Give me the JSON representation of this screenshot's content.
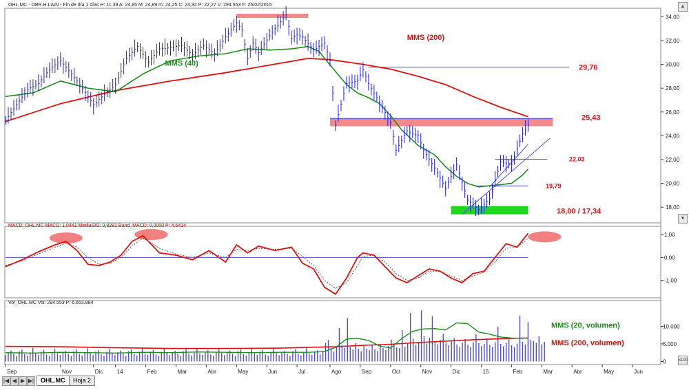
{
  "window": {
    "price_header": "OHL.MC - OBR.H.LAIN - Fin de día 1 días  H: 11:39  A: 24,85  M: 24,89  m: 24,25  C: 24,32  P: 22,27  V: 294.553  F: 25/02/2015",
    "macd_header": "MACD_OHL.MC  MACD: 1,0441  MediaSIG: 0,8281  Band_MACD: 0,0000  P: 4,6414",
    "vol_header": "Vol_OHL.MC  Vol: 294.553  P: 6.653.884",
    "sheet_tabs": [
      "OHL.MC",
      "Hoja 2"
    ],
    "nav_buttons": [
      "|◀",
      "◀",
      "▶",
      "▶|"
    ],
    "panel_buttons": [
      "▲",
      "▼"
    ],
    "volume_scale_badge": "x100"
  },
  "colors": {
    "price": "#1a1aff",
    "mms40": "#1e8c1e",
    "mms200": "#e01010",
    "resistance_band": "#f28a8a",
    "support_band": "#1ed81e",
    "ellipse": "#f06a6a",
    "macd": "#e01010",
    "macd_signal": "#555555",
    "zero_line": "#4a4ad0",
    "volume_bar": "#4b4bdc",
    "label_red": "#e01010",
    "label_green": "#1e8c1e"
  },
  "chart_data": [
    {
      "type": "line",
      "panel": "price",
      "ylim": [
        16.8,
        34.6
      ],
      "yticks": [
        "34,00",
        "32,00",
        "30,00",
        "28,00",
        "26,00",
        "24,00",
        "22,00",
        "20,00",
        "18,00"
      ],
      "yticks_values": [
        34,
        32,
        30,
        28,
        26,
        24,
        22,
        20,
        18
      ],
      "x_tick_labels": [
        "Sep",
        "Nov",
        "Dic",
        "14",
        "Feb",
        "Mar",
        "Abr",
        "May",
        "Jun",
        "Jul",
        "Ago",
        "Sep",
        "Oct",
        "Nov",
        "Dic",
        "15",
        "Feb",
        "Mar",
        "Abr",
        "May",
        "Jun"
      ],
      "x_tick_index": [
        0,
        20,
        32,
        40,
        51,
        62,
        73,
        84,
        95,
        106,
        118,
        129,
        140,
        151,
        162,
        173,
        184,
        195,
        206,
        217,
        228
      ],
      "x_range_days": [
        0,
        238
      ],
      "series": [
        {
          "key": "price",
          "x": [
            0,
            4,
            8,
            12,
            16,
            20,
            24,
            28,
            32,
            36,
            40,
            44,
            48,
            52,
            56,
            60,
            64,
            68,
            72,
            76,
            80,
            84,
            86,
            88,
            90,
            92,
            96,
            100,
            102,
            104,
            106,
            108,
            112,
            116,
            118,
            120,
            124,
            128,
            130,
            132,
            136,
            140,
            142,
            146,
            150,
            152,
            156,
            160,
            164,
            168,
            172,
            176,
            180,
            184,
            186,
            188,
            190
          ],
          "values": [
            25.3,
            26.6,
            27.9,
            28.4,
            29.6,
            30.3,
            29.2,
            28.0,
            26.6,
            27.5,
            28.3,
            30.5,
            31.5,
            30.2,
            31.3,
            31.4,
            31.6,
            30.8,
            31.6,
            30.9,
            32.3,
            33.5,
            32.9,
            30.5,
            31.8,
            31.0,
            32.4,
            33.6,
            34.2,
            32.2,
            32.5,
            32.3,
            31.2,
            31.8,
            30.3,
            24.9,
            28.4,
            28.6,
            29.6,
            28.4,
            26.8,
            25.1,
            22.8,
            24.4,
            24.0,
            22.8,
            21.3,
            19.6,
            21.6,
            18.6,
            17.8,
            18.7,
            21.8,
            21.6,
            22.9,
            24.2,
            24.9
          ]
        },
        {
          "key": "mms40",
          "name": "MMS (40)",
          "x": [
            0,
            10,
            20,
            30,
            40,
            50,
            60,
            70,
            80,
            88,
            96,
            104,
            110,
            114,
            116,
            120,
            124,
            128,
            132,
            136,
            140,
            144,
            150,
            156,
            160,
            164,
            168,
            172,
            176,
            180,
            184,
            188,
            190
          ],
          "values": [
            27.3,
            27.6,
            28.6,
            28.0,
            27.7,
            29.2,
            30.3,
            30.7,
            30.9,
            31.3,
            31.2,
            31.3,
            31.5,
            31.1,
            30.5,
            29.4,
            28.3,
            27.6,
            27.2,
            26.7,
            25.7,
            24.5,
            23.2,
            22.4,
            21.4,
            20.6,
            20.0,
            19.7,
            19.8,
            19.9,
            20.0,
            20.7,
            21.2
          ]
        },
        {
          "key": "mms200",
          "name": "MMS (200)",
          "x": [
            0,
            20,
            40,
            60,
            80,
            100,
            110,
            118,
            130,
            140,
            150,
            160,
            170,
            180,
            190
          ],
          "values": [
            25.2,
            26.7,
            27.8,
            28.6,
            29.3,
            30.1,
            30.5,
            30.4,
            30.0,
            29.6,
            29.0,
            28.3,
            27.3,
            26.4,
            25.6
          ]
        }
      ],
      "annotations": {
        "hline_2976": {
          "y": 29.76,
          "x": [
            132,
            205
          ],
          "label": "29,76"
        },
        "band_2543": {
          "y": [
            24.8,
            25.5
          ],
          "x": [
            118,
            199
          ],
          "label": "25,43"
        },
        "top_band": {
          "y": [
            33.9,
            34.25
          ],
          "x": [
            84,
            110
          ]
        },
        "hline_2203": {
          "y": 22.03,
          "x": [
            178,
            197
          ],
          "label": "22,03"
        },
        "hline_1979": {
          "y": 19.79,
          "x": [
            171,
            190
          ],
          "label": "19,79"
        },
        "support_band": {
          "y": [
            17.4,
            18.1
          ],
          "x": [
            162,
            190
          ],
          "label": "18,00 / 17,34"
        },
        "trendline": {
          "x": [
            166,
            198
          ],
          "y": [
            17.4,
            23.8
          ]
        },
        "trendline_short": {
          "x": [
            176,
            190
          ],
          "y": [
            19.7,
            23.3
          ]
        },
        "label_mms200": "MMS (200)",
        "label_mms40": "MMS (40)"
      }
    },
    {
      "type": "line",
      "panel": "macd",
      "ylim": [
        -1.7,
        1.3
      ],
      "yticks": [
        "1,00",
        "0,00",
        "-1,00"
      ],
      "yticks_values": [
        1,
        0,
        -1
      ],
      "series": [
        {
          "key": "macd",
          "name": "MACD",
          "x": [
            0,
            6,
            12,
            18,
            22,
            26,
            30,
            34,
            38,
            42,
            46,
            50,
            56,
            62,
            68,
            74,
            80,
            84,
            88,
            92,
            98,
            104,
            108,
            112,
            116,
            120,
            124,
            128,
            130,
            134,
            138,
            142,
            146,
            150,
            154,
            158,
            162,
            166,
            170,
            174,
            178,
            182,
            186,
            190
          ],
          "values": [
            -0.4,
            -0.1,
            0.25,
            0.55,
            0.7,
            0.3,
            -0.3,
            -0.35,
            -0.2,
            0.1,
            0.7,
            0.95,
            0.2,
            0.1,
            -0.1,
            0.3,
            -0.2,
            0.55,
            0.2,
            0.5,
            0.3,
            0.45,
            -0.25,
            -0.5,
            -1.3,
            -1.6,
            -0.9,
            0.0,
            0.2,
            0.1,
            -0.4,
            -0.9,
            -1.1,
            -0.8,
            -0.5,
            -0.6,
            -0.9,
            -1.1,
            -0.7,
            -0.6,
            0.0,
            0.6,
            0.45,
            1.05
          ]
        },
        {
          "key": "signal",
          "name": "MediaSIG",
          "x": [
            0,
            6,
            12,
            18,
            22,
            26,
            30,
            34,
            38,
            42,
            46,
            50,
            56,
            62,
            68,
            74,
            80,
            84,
            88,
            92,
            98,
            104,
            108,
            112,
            116,
            120,
            124,
            128,
            130,
            134,
            138,
            142,
            146,
            150,
            154,
            158,
            162,
            166,
            170,
            174,
            178,
            182,
            186,
            190
          ],
          "values": [
            -0.35,
            -0.15,
            0.15,
            0.45,
            0.62,
            0.45,
            0.0,
            -0.3,
            -0.25,
            0.0,
            0.5,
            0.85,
            0.4,
            0.15,
            0.0,
            0.2,
            0.0,
            0.35,
            0.3,
            0.4,
            0.35,
            0.4,
            0.05,
            -0.35,
            -1.0,
            -1.35,
            -1.1,
            -0.35,
            0.05,
            0.1,
            -0.2,
            -0.7,
            -1.0,
            -0.9,
            -0.6,
            -0.6,
            -0.8,
            -1.0,
            -0.8,
            -0.65,
            -0.2,
            0.4,
            0.45,
            0.83
          ]
        }
      ],
      "ellipses": [
        {
          "x": 22,
          "y": 0.85
        },
        {
          "x": 53,
          "y": 1.0
        },
        {
          "x": 196,
          "y": 0.9
        }
      ]
    },
    {
      "type": "bar",
      "panel": "volume",
      "ylim": [
        -500,
        17000
      ],
      "yticks": [
        "10.000",
        "5.000",
        "0"
      ],
      "yticks_values": [
        10000,
        5000,
        0
      ],
      "bars": {
        "x_start": 0,
        "x_end": 190,
        "count": 192,
        "values": [
          1800,
          2600,
          3100,
          2200,
          1500,
          2900,
          3400,
          2100,
          1700,
          2500,
          3900,
          2300,
          1900,
          2800,
          3300,
          2000,
          1600,
          2700,
          3600,
          2400,
          1800,
          2600,
          3000,
          2100,
          1500,
          2900,
          3500,
          2200,
          1700,
          2500,
          3800,
          2300,
          1900,
          2800,
          3200,
          2000,
          1600,
          2700,
          3600,
          2400,
          1800,
          2600,
          3100,
          2200,
          1500,
          2900,
          3400,
          2100,
          1700,
          2500,
          3900,
          2300,
          1900,
          2800,
          3300,
          2000,
          1600,
          2700,
          3600,
          2400,
          1800,
          2600,
          3000,
          2100,
          1500,
          2900,
          3500,
          2200,
          1700,
          2500,
          3800,
          2300,
          1900,
          2800,
          3200,
          2000,
          1600,
          2700,
          3600,
          2400,
          1800,
          2600,
          3100,
          2200,
          1500,
          2900,
          3400,
          2100,
          1700,
          2500,
          3900,
          2300,
          1900,
          2800,
          3300,
          2000,
          1600,
          2700,
          3600,
          2400,
          1800,
          2600,
          3000,
          2100,
          1500,
          2900,
          3500,
          2200,
          1700,
          2500,
          3800,
          2300,
          1900,
          2800,
          3200,
          2000,
          3000,
          5200,
          6100,
          3800,
          2800,
          4200,
          9500,
          4600,
          3900,
          12400,
          4100,
          3400,
          5300,
          3600,
          2900,
          4400,
          3700,
          3200,
          4600,
          3500,
          3000,
          4800,
          3800,
          3300,
          4400,
          6200,
          5100,
          4000,
          3800,
          8900,
          4200,
          5300,
          13800,
          6500,
          4700,
          5600,
          14600,
          7200,
          5100,
          6800,
          12900,
          5800,
          4900,
          6100,
          7900,
          5400,
          4600,
          5800,
          6700,
          4900,
          4200,
          5300,
          6400,
          4800,
          4100,
          5500,
          7700,
          5200,
          4400,
          5000,
          6600,
          4700,
          4200,
          5400,
          9900,
          5000,
          4300,
          5200,
          6300,
          4600,
          4100,
          5100,
          13100,
          5600,
          4800,
          11200,
          6200,
          5800,
          5300,
          7200,
          4900,
          5600
        ]
      },
      "series": [
        {
          "key": "vma20",
          "name": "MMS (20, volumen)",
          "x": [
            0,
            10,
            20,
            30,
            40,
            50,
            60,
            70,
            80,
            90,
            100,
            110,
            116,
            120,
            124,
            128,
            132,
            136,
            140,
            144,
            148,
            152,
            156,
            160,
            164,
            168,
            172,
            176,
            180,
            184,
            188,
            190
          ],
          "values": [
            2500,
            2400,
            2600,
            2500,
            2400,
            2600,
            2500,
            2700,
            2600,
            2500,
            2600,
            2600,
            2800,
            4000,
            6400,
            6600,
            6000,
            4400,
            3800,
            6500,
            8600,
            9300,
            9400,
            9000,
            11000,
            10800,
            8400,
            7800,
            7000,
            6700,
            6600,
            6700
          ]
        },
        {
          "key": "vma200",
          "name": "MMS (200, volumen)",
          "x": [
            0,
            20,
            40,
            60,
            80,
            100,
            120,
            130,
            140,
            150,
            160,
            170,
            180,
            190
          ],
          "values": [
            4300,
            4200,
            3900,
            3700,
            3700,
            3800,
            4200,
            4600,
            4900,
            5400,
            5800,
            6200,
            6500,
            6700
          ]
        }
      ]
    }
  ]
}
